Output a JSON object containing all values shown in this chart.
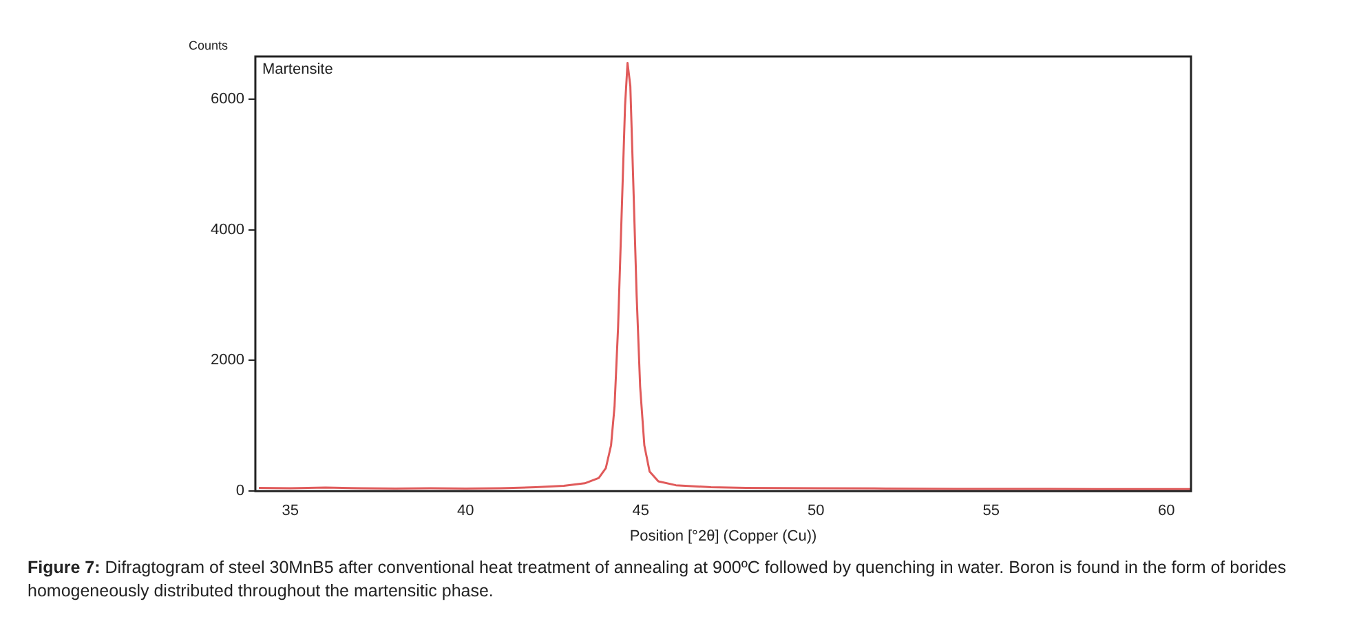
{
  "chart_data": {
    "type": "line",
    "ylabel": "Counts",
    "xlabel": "Position [°2θ] (Copper (Cu))",
    "annotations": [
      "Martensite",
      "Figure 7: Difragtogram of steel 30MnB5 after conventional heat treatment of annealing at 900ºC followed by quenching in water. Boron is found in the form of borides homogeneously distributed throughout the martensitic phase."
    ],
    "x": [
      34.1,
      35,
      36,
      37,
      38,
      39,
      40,
      41,
      42,
      42.8,
      43.4,
      43.8,
      44.0,
      44.15,
      44.25,
      44.35,
      44.45,
      44.55,
      44.62,
      44.7,
      44.78,
      44.88,
      44.98,
      45.1,
      45.25,
      45.5,
      46,
      47,
      48,
      50,
      52,
      54,
      56,
      58,
      60,
      60.7
    ],
    "series": [
      {
        "color": "#e05a5a",
        "values": [
          50,
          45,
          55,
          45,
          40,
          45,
          40,
          45,
          60,
          80,
          120,
          200,
          350,
          700,
          1300,
          2500,
          4200,
          5900,
          6550,
          6200,
          4800,
          3000,
          1600,
          700,
          300,
          150,
          90,
          60,
          50,
          45,
          40,
          35,
          35,
          30,
          30,
          30
        ]
      }
    ],
    "xlim": [
      34,
      60.7
    ],
    "ylim": [
      0,
      6650
    ],
    "xticks": [
      35,
      40,
      45,
      50,
      55,
      60
    ],
    "yticks": [
      0,
      2000,
      4000,
      6000
    ],
    "grid": false,
    "legend": false,
    "marker": "none",
    "line_style": "solid"
  }
}
